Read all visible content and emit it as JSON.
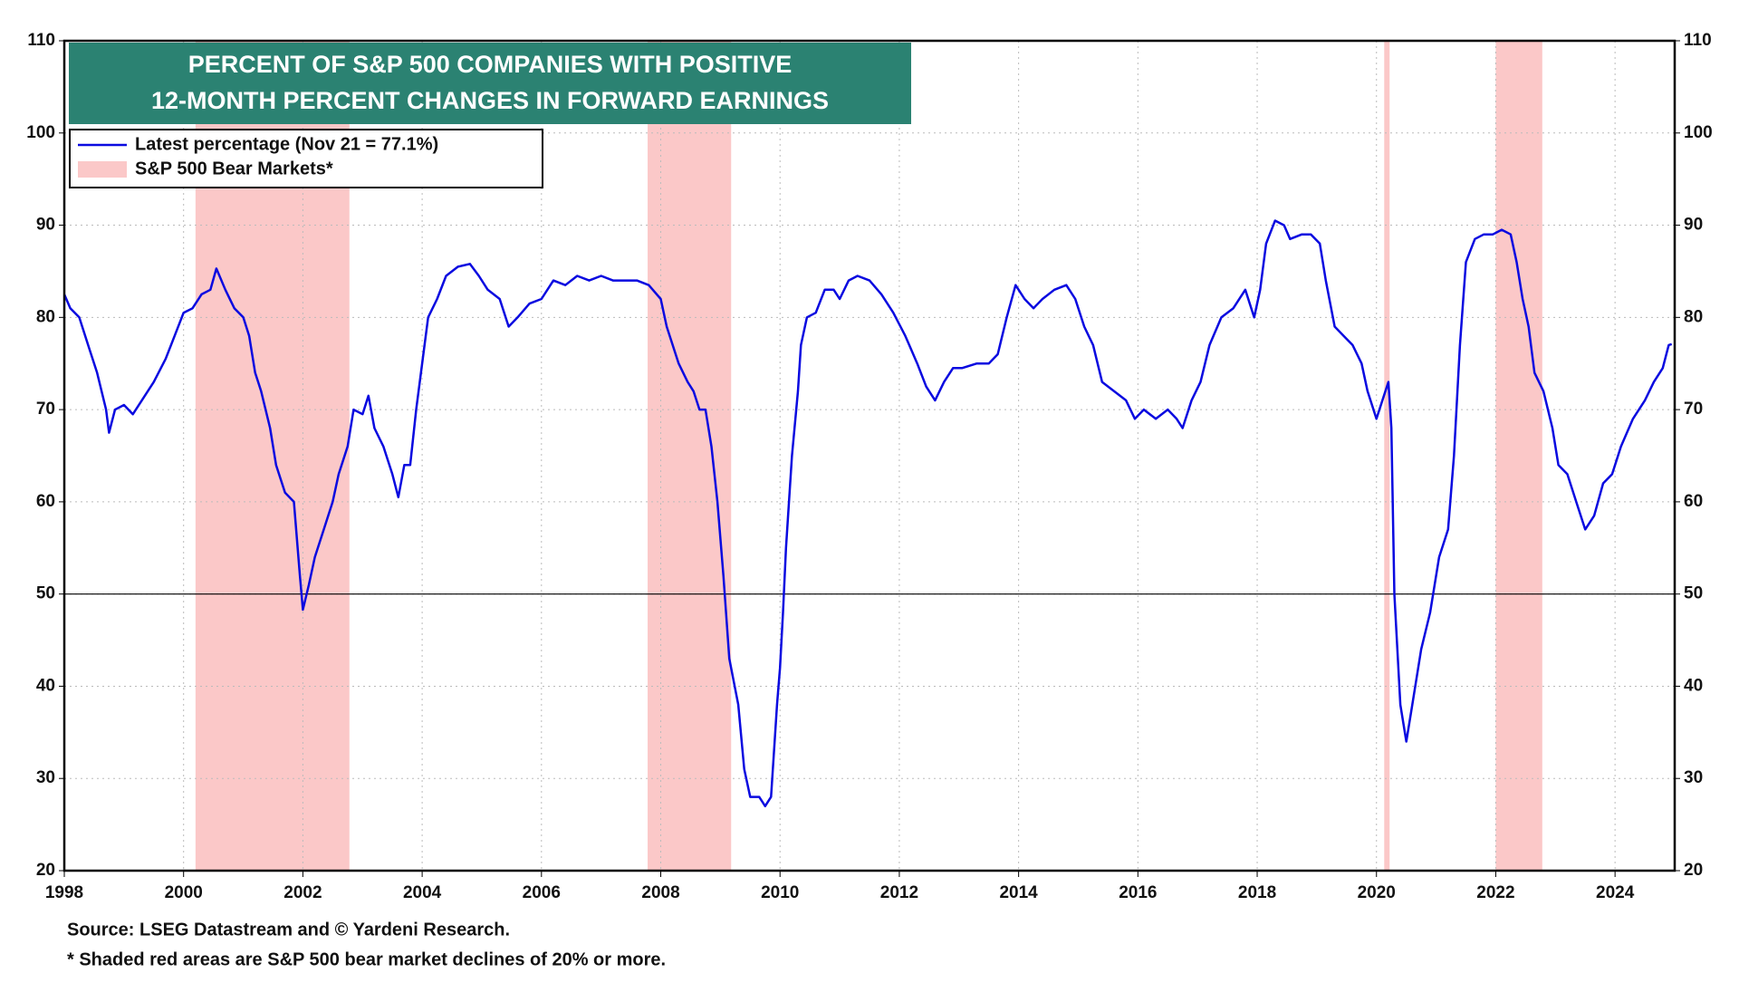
{
  "chart_data": {
    "type": "line",
    "title": [
      "PERCENT OF S&P 500 COMPANIES WITH POSITIVE",
      "12-MONTH PERCENT CHANGES IN FORWARD EARNINGS"
    ],
    "xlim": [
      1998,
      2025
    ],
    "xticks": [
      1998,
      2000,
      2002,
      2004,
      2006,
      2008,
      2010,
      2012,
      2014,
      2016,
      2018,
      2020,
      2022,
      2024
    ],
    "ylim": [
      20,
      110
    ],
    "yticks": [
      20,
      30,
      40,
      50,
      60,
      70,
      80,
      90,
      100,
      110
    ],
    "grid": true,
    "reference_line": 50,
    "series": [
      {
        "name": "Latest percentage (Nov 21 = 77.1%)",
        "color": "#0a0ae0",
        "x": [
          1998.0,
          1998.1,
          1998.25,
          1998.4,
          1998.55,
          1998.7,
          1998.75,
          1998.85,
          1999.0,
          1999.15,
          1999.3,
          1999.5,
          1999.7,
          1999.85,
          2000.0,
          2000.15,
          2000.3,
          2000.45,
          2000.55,
          2000.7,
          2000.85,
          2001.0,
          2001.1,
          2001.2,
          2001.3,
          2001.45,
          2001.55,
          2001.7,
          2001.85,
          2001.95,
          2002.0,
          2002.1,
          2002.2,
          2002.35,
          2002.5,
          2002.6,
          2002.75,
          2002.85,
          2003.0,
          2003.1,
          2003.2,
          2003.35,
          2003.5,
          2003.6,
          2003.7,
          2003.8,
          2003.9,
          2004.0,
          2004.1,
          2004.25,
          2004.4,
          2004.6,
          2004.8,
          2004.95,
          2005.1,
          2005.3,
          2005.45,
          2005.6,
          2005.8,
          2006.0,
          2006.2,
          2006.4,
          2006.6,
          2006.8,
          2007.0,
          2007.2,
          2007.4,
          2007.6,
          2007.8,
          2008.0,
          2008.1,
          2008.2,
          2008.3,
          2008.45,
          2008.55,
          2008.65,
          2008.75,
          2008.85,
          2008.95,
          2009.05,
          2009.15,
          2009.3,
          2009.4,
          2009.5,
          2009.65,
          2009.75,
          2009.85,
          2009.95,
          2010.0,
          2010.05,
          2010.1,
          2010.2,
          2010.3,
          2010.35,
          2010.45,
          2010.6,
          2010.75,
          2010.9,
          2011.0,
          2011.15,
          2011.3,
          2011.5,
          2011.7,
          2011.9,
          2012.1,
          2012.3,
          2012.45,
          2012.6,
          2012.75,
          2012.9,
          2013.05,
          2013.3,
          2013.5,
          2013.65,
          2013.8,
          2013.95,
          2014.1,
          2014.25,
          2014.4,
          2014.6,
          2014.8,
          2014.95,
          2015.1,
          2015.25,
          2015.4,
          2015.6,
          2015.8,
          2015.95,
          2016.1,
          2016.3,
          2016.5,
          2016.65,
          2016.75,
          2016.9,
          2017.05,
          2017.2,
          2017.4,
          2017.6,
          2017.8,
          2017.95,
          2018.05,
          2018.15,
          2018.3,
          2018.45,
          2018.55,
          2018.75,
          2018.9,
          2019.05,
          2019.15,
          2019.3,
          2019.45,
          2019.6,
          2019.75,
          2019.85,
          2020.0,
          2020.1,
          2020.2,
          2020.25,
          2020.3,
          2020.4,
          2020.5,
          2020.6,
          2020.75,
          2020.9,
          2021.05,
          2021.2,
          2021.3,
          2021.4,
          2021.5,
          2021.65,
          2021.8,
          2021.95,
          2022.1,
          2022.25,
          2022.35,
          2022.45,
          2022.55,
          2022.65,
          2022.8,
          2022.95,
          2023.05,
          2023.2,
          2023.35,
          2023.5,
          2023.65,
          2023.8,
          2023.95,
          2024.1,
          2024.3,
          2024.5,
          2024.65,
          2024.8,
          2024.9,
          2024.95
        ],
        "values": [
          82.5,
          81,
          80,
          77,
          74,
          70,
          67.5,
          70,
          70.5,
          69.5,
          71,
          73,
          75.5,
          78,
          80.5,
          81,
          82.5,
          83,
          85.3,
          83,
          81,
          80,
          78,
          74,
          72,
          68,
          64,
          61,
          60,
          52,
          48.3,
          51,
          54,
          57,
          60,
          63,
          66,
          70,
          69.5,
          71.5,
          68,
          66,
          63,
          60.5,
          64,
          64,
          70,
          75,
          80,
          82,
          84.5,
          85.5,
          85.8,
          84.5,
          83,
          82,
          79,
          80,
          81.5,
          82,
          84,
          83.5,
          84.5,
          84,
          84.5,
          84,
          84,
          84,
          83.5,
          82,
          79,
          77,
          75,
          73,
          72,
          70,
          70,
          66,
          60,
          52,
          43,
          38,
          31,
          28,
          28,
          27,
          28,
          38,
          42,
          48,
          55,
          65,
          72,
          77,
          80,
          80.5,
          83,
          83,
          82,
          84,
          84.5,
          84,
          82.5,
          80.5,
          78,
          75,
          72.5,
          71,
          73,
          74.5,
          74.5,
          75,
          75,
          76,
          80,
          83.5,
          82,
          81,
          82,
          83,
          83.5,
          82,
          79,
          77,
          73,
          72,
          71,
          69,
          70,
          69,
          70,
          69,
          68,
          71,
          73,
          77,
          80,
          81,
          83,
          80,
          83,
          88,
          90.5,
          90,
          88.5,
          89,
          89,
          88,
          84,
          79,
          78,
          77,
          75,
          72,
          69,
          71,
          73,
          68,
          50,
          38,
          34,
          38,
          44,
          48,
          54,
          57,
          65,
          77,
          86,
          88.5,
          89,
          89,
          89.5,
          89,
          86,
          82,
          79,
          74,
          72,
          68,
          64,
          63,
          60,
          57,
          58.5,
          62,
          63,
          66,
          69,
          71,
          73,
          74.5,
          77,
          77.1
        ]
      }
    ],
    "shaded": {
      "name": "S&P 500 Bear Markets*",
      "color": "#fbc8c8",
      "spans": [
        [
          2000.2,
          2002.78
        ],
        [
          2007.78,
          2009.18
        ],
        [
          2020.13,
          2020.22
        ],
        [
          2022.0,
          2022.78
        ]
      ]
    },
    "notes": [
      "Source: LSEG Datastream and © Yardeni Research.",
      "* Shaded red areas are S&P 500 bear market declines of 20% or more."
    ]
  }
}
